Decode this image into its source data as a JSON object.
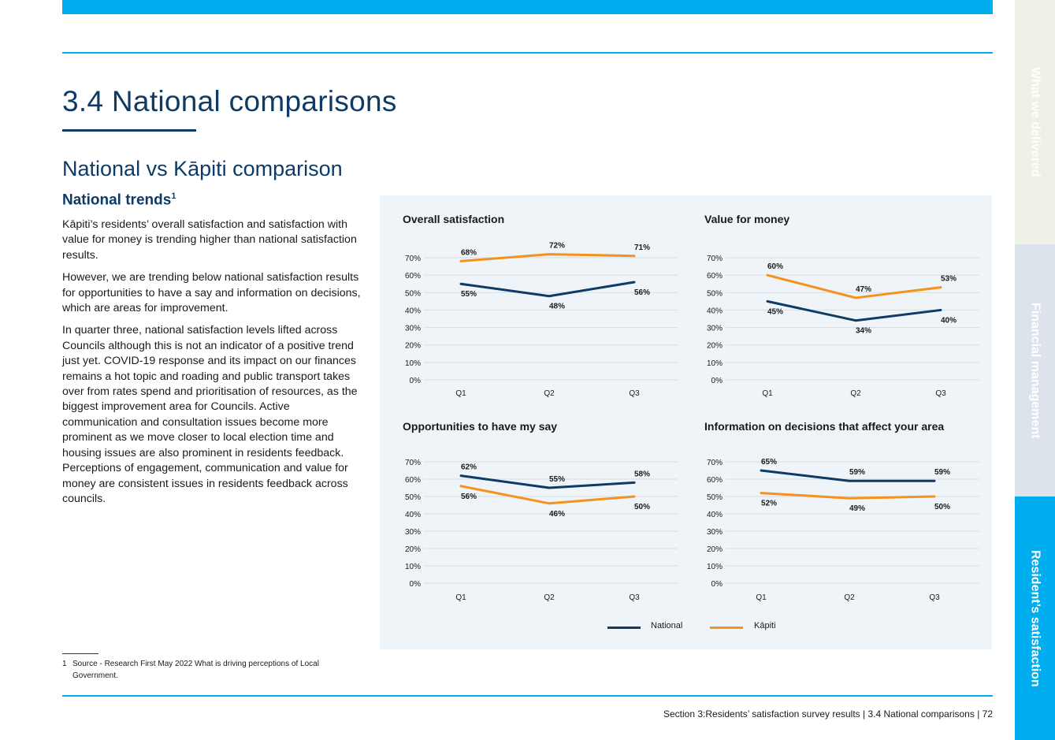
{
  "page": {
    "heading": "3.4 National comparisons",
    "subheading": "National vs Kāpiti comparison",
    "section_heading": "National trends",
    "section_heading_sup": "1",
    "paragraphs": [
      "Kāpiti’s residents’ overall satisfaction and satisfaction with value for money is trending higher than national satisfaction results.",
      "However, we are trending below national satisfaction results for opportunities to have a say and information on decisions, which are areas for improvement.",
      "In quarter three, national satisfaction levels lifted across Councils  although this is not an indicator of a positive trend just yet. COVID-19 response and its impact on our finances remains a hot topic and roading and public transport takes over from rates spend and prioritisation of resources, as the biggest improvement area for Councils. Active communication and consultation issues become more prominent as we move closer to local election time and housing issues are also prominent in residents feedback. Perceptions of engagement, communication and value for money are consistent issues in residents feedback across councils."
    ],
    "footnote_number": "1",
    "footnote_text": "Source - Research First May 2022 What is driving perceptions of Local Government.",
    "footer": "Section 3:Residents’ satisfaction survey results  |  3.4 National comparisons  |  72"
  },
  "side_tabs": [
    "What we delivered",
    "Financial management",
    "Resident’s satisfaction"
  ],
  "colors": {
    "national": "#0d3b66",
    "kapiti": "#f5921e",
    "accent": "#00aeef"
  },
  "legend": {
    "national": "National",
    "kapiti": "Kāpiti"
  },
  "chart_data": [
    {
      "type": "line",
      "title": "Overall satisfaction",
      "categories": [
        "Q1",
        "Q2",
        "Q3"
      ],
      "ylim": [
        0,
        70
      ],
      "yticks": [
        "0%",
        "10%",
        "20%",
        "30%",
        "40%",
        "50%",
        "60%",
        "70%"
      ],
      "series": [
        {
          "name": "National",
          "values": [
            55,
            48,
            56
          ],
          "labels": [
            "55%",
            "48%",
            "56%"
          ]
        },
        {
          "name": "Kāpiti",
          "values": [
            68,
            72,
            71
          ],
          "labels": [
            "68%",
            "72%",
            "71%"
          ]
        }
      ]
    },
    {
      "type": "line",
      "title": "Value for money",
      "categories": [
        "Q1",
        "Q2",
        "Q3"
      ],
      "ylim": [
        0,
        70
      ],
      "yticks": [
        "0%",
        "10%",
        "20%",
        "30%",
        "40%",
        "50%",
        "60%",
        "70%"
      ],
      "series": [
        {
          "name": "National",
          "values": [
            45,
            34,
            40
          ],
          "labels": [
            "45%",
            "34%",
            "40%"
          ]
        },
        {
          "name": "Kāpiti",
          "values": [
            60,
            47,
            53
          ],
          "labels": [
            "60%",
            "47%",
            "53%"
          ]
        }
      ]
    },
    {
      "type": "line",
      "title": "Opportunities to have my say",
      "categories": [
        "Q1",
        "Q2",
        "Q3"
      ],
      "ylim": [
        0,
        70
      ],
      "yticks": [
        "0%",
        "10%",
        "20%",
        "30%",
        "40%",
        "50%",
        "60%",
        "70%"
      ],
      "series": [
        {
          "name": "National",
          "values": [
            62,
            55,
            58
          ],
          "labels": [
            "62%",
            "55%",
            "58%"
          ]
        },
        {
          "name": "Kāpiti",
          "values": [
            56,
            46,
            50
          ],
          "labels": [
            "56%",
            "46%",
            "50%"
          ]
        }
      ]
    },
    {
      "type": "line",
      "title": "Information on decisions that affect your area",
      "categories": [
        "Q1",
        "Q2",
        "Q3"
      ],
      "ylim": [
        0,
        70
      ],
      "yticks": [
        "0%",
        "10%",
        "20%",
        "30%",
        "40%",
        "50%",
        "60%",
        "70%"
      ],
      "series": [
        {
          "name": "National",
          "values": [
            65,
            59,
            59
          ],
          "labels": [
            "65%",
            "59%",
            "59%"
          ]
        },
        {
          "name": "Kāpiti",
          "values": [
            52,
            49,
            50
          ],
          "labels": [
            "52%",
            "49%",
            "50%"
          ]
        }
      ]
    }
  ]
}
